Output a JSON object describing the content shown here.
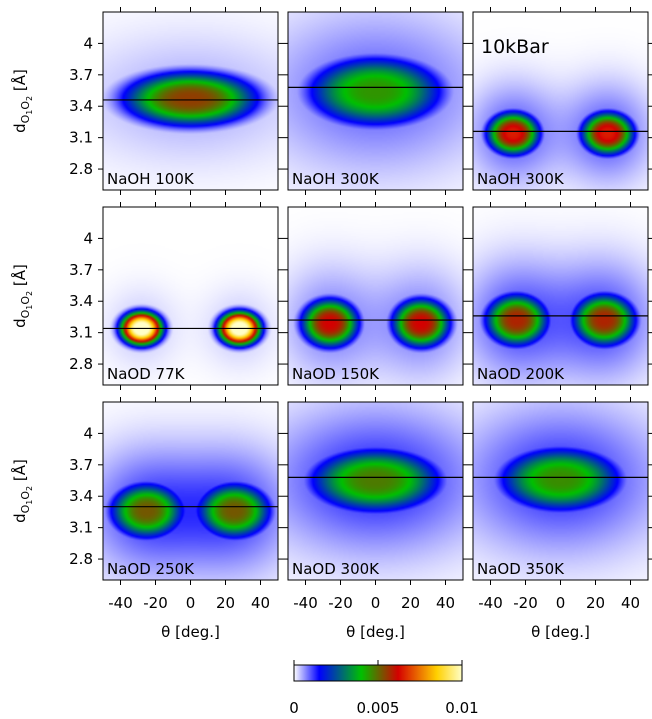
{
  "chart_data": {
    "type": "heatmap",
    "x_axis": {
      "label": "θ [deg.]",
      "ticks": [
        -40,
        -20,
        0,
        20,
        40
      ],
      "tick_labels": [
        "-40",
        "-20",
        "0",
        "20",
        "40"
      ],
      "range": [
        -50,
        50
      ]
    },
    "y_axis": {
      "label_main": "d",
      "label_sub1": "O",
      "label_sub1_index": "1",
      "label_sub2": "O",
      "label_sub2_index": "2",
      "label_unit": " [Å]",
      "ticks": [
        4,
        3.7,
        3.4,
        3.1,
        2.8
      ],
      "tick_labels": [
        "4",
        "3.7",
        "3.4",
        "3.1",
        "2.8"
      ],
      "range": [
        2.6,
        4.3
      ]
    },
    "colorbar": {
      "min": 0,
      "max": 0.01,
      "tick_values": [
        0,
        0.005,
        0.01
      ],
      "tick_labels": [
        "0",
        "0.005",
        "0.01"
      ],
      "colors": [
        "#ffffff",
        "#0000ff",
        "#00c000",
        "#d40000",
        "#ffd000",
        "#ffffc8"
      ]
    },
    "pressure_annotation": "10kBar",
    "panels": [
      {
        "label": "NaOH 100K",
        "line_y": 3.46,
        "peak": 0.0055,
        "blobs": [
          {
            "x": 0,
            "y": 3.47,
            "sx": 28,
            "sy": 0.19,
            "w": 1.0
          }
        ],
        "halo": 0.15
      },
      {
        "label": "NaOH 300K",
        "line_y": 3.58,
        "peak": 0.0045,
        "blobs": [
          {
            "x": 0,
            "y": 3.54,
            "sx": 28,
            "sy": 0.24,
            "w": 1.0
          }
        ],
        "halo": 0.35
      },
      {
        "label": "NaOH 300K",
        "line_y": 3.16,
        "peak": 0.0065,
        "blobs": [
          {
            "x": -27,
            "y": 3.14,
            "sx": 11,
            "sy": 0.15,
            "w": 1.0
          },
          {
            "x": 27,
            "y": 3.14,
            "sx": 11,
            "sy": 0.15,
            "w": 1.0
          }
        ],
        "halo": 0.25
      },
      {
        "label": "NaOD 77K",
        "line_y": 3.14,
        "peak": 0.0105,
        "blobs": [
          {
            "x": -28,
            "y": 3.14,
            "sx": 9,
            "sy": 0.12,
            "w": 1.0
          },
          {
            "x": 28,
            "y": 3.14,
            "sx": 9,
            "sy": 0.12,
            "w": 1.0
          }
        ],
        "halo": 0.05
      },
      {
        "label": "NaOD 150K",
        "line_y": 3.22,
        "peak": 0.0062,
        "blobs": [
          {
            "x": -26,
            "y": 3.19,
            "sx": 12,
            "sy": 0.17,
            "w": 1.0
          },
          {
            "x": 26,
            "y": 3.19,
            "sx": 12,
            "sy": 0.17,
            "w": 1.0
          }
        ],
        "halo": 0.2
      },
      {
        "label": "NaOD 200K",
        "line_y": 3.26,
        "peak": 0.0058,
        "blobs": [
          {
            "x": -25,
            "y": 3.22,
            "sx": 13,
            "sy": 0.18,
            "w": 1.0
          },
          {
            "x": 25,
            "y": 3.22,
            "sx": 13,
            "sy": 0.18,
            "w": 1.0
          }
        ],
        "halo": 0.3
      },
      {
        "label": "NaOD 250K",
        "line_y": 3.3,
        "peak": 0.0052,
        "blobs": [
          {
            "x": -25,
            "y": 3.26,
            "sx": 15,
            "sy": 0.19,
            "w": 1.0
          },
          {
            "x": 25,
            "y": 3.26,
            "sx": 15,
            "sy": 0.19,
            "w": 1.0
          }
        ],
        "halo": 0.35
      },
      {
        "label": "NaOD 300K",
        "line_y": 3.58,
        "peak": 0.0048,
        "blobs": [
          {
            "x": 0,
            "y": 3.55,
            "sx": 27,
            "sy": 0.22,
            "w": 1.0
          }
        ],
        "halo": 0.45
      },
      {
        "label": "NaOD 350K",
        "line_y": 3.58,
        "peak": 0.0046,
        "blobs": [
          {
            "x": 0,
            "y": 3.56,
            "sx": 25,
            "sy": 0.22,
            "w": 1.0
          }
        ],
        "halo": 0.45
      }
    ]
  }
}
